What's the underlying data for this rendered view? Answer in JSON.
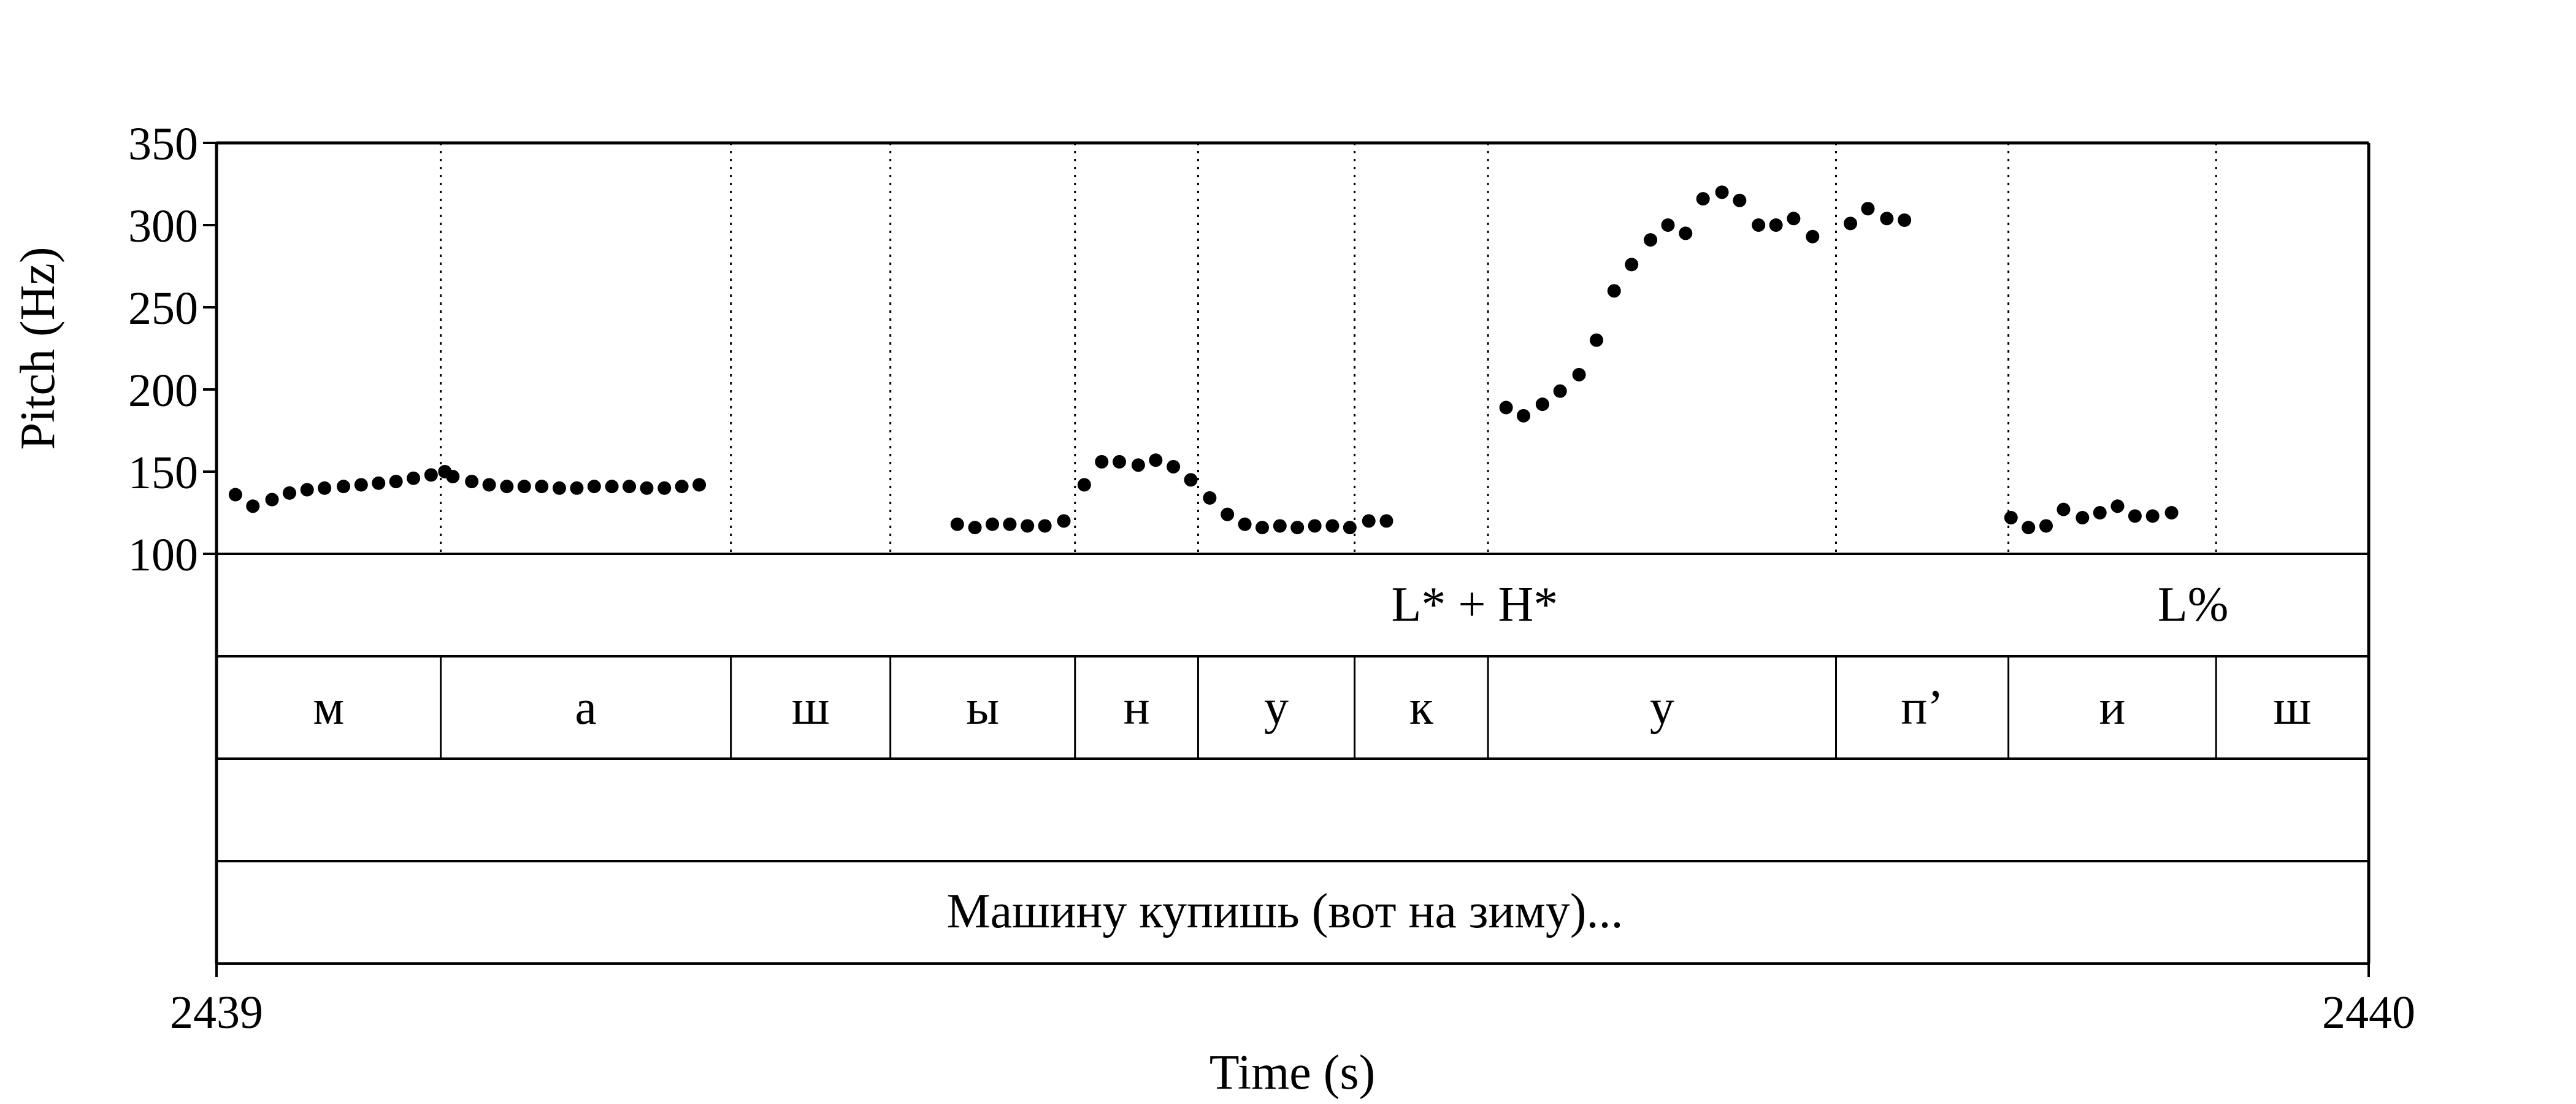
{
  "chart_data": {
    "type": "scatter",
    "title": "",
    "xlabel": "Time (s)",
    "ylabel": "Pitch (Hz)",
    "xlim": [
      2439,
      2440
    ],
    "ylim": [
      100,
      350
    ],
    "y_ticks": [
      100,
      150,
      200,
      250,
      300,
      350
    ],
    "x_tick_labels": [
      "2439",
      "2440"
    ],
    "grid": false,
    "series": [
      {
        "name": "",
        "points": [
          [
            2439.0088,
            136
          ],
          [
            2439.0169,
            129
          ],
          [
            2439.0258,
            133
          ],
          [
            2439.0339,
            137
          ],
          [
            2439.0421,
            139
          ],
          [
            2439.0502,
            140
          ],
          [
            2439.059,
            141
          ],
          [
            2439.0672,
            142
          ],
          [
            2439.0753,
            143
          ],
          [
            2439.0834,
            144
          ],
          [
            2439.0915,
            146
          ],
          [
            2439.0997,
            148
          ],
          [
            2439.1061,
            150
          ],
          [
            2439.1098,
            147
          ],
          [
            2439.1186,
            144
          ],
          [
            2439.1267,
            142
          ],
          [
            2439.1349,
            141
          ],
          [
            2439.143,
            141
          ],
          [
            2439.1511,
            141
          ],
          [
            2439.1593,
            140
          ],
          [
            2439.1674,
            140
          ],
          [
            2439.1755,
            141
          ],
          [
            2439.1837,
            141
          ],
          [
            2439.1918,
            141
          ],
          [
            2439.1999,
            140
          ],
          [
            2439.2081,
            140
          ],
          [
            2439.2162,
            141
          ],
          [
            2439.2243,
            142
          ],
          [
            2439.3442,
            118
          ],
          [
            2439.3524,
            116
          ],
          [
            2439.3605,
            118
          ],
          [
            2439.3686,
            118
          ],
          [
            2439.3768,
            117
          ],
          [
            2439.3849,
            117
          ],
          [
            2439.3937,
            120
          ],
          [
            2439.4032,
            142
          ],
          [
            2439.4113,
            156
          ],
          [
            2439.4195,
            156
          ],
          [
            2439.4283,
            154
          ],
          [
            2439.4364,
            157
          ],
          [
            2439.4446,
            153
          ],
          [
            2439.4527,
            145
          ],
          [
            2439.4615,
            134
          ],
          [
            2439.4697,
            124
          ],
          [
            2439.4778,
            118
          ],
          [
            2439.4859,
            116
          ],
          [
            2439.4941,
            117
          ],
          [
            2439.5022,
            116
          ],
          [
            2439.5103,
            117
          ],
          [
            2439.5185,
            117
          ],
          [
            2439.5266,
            116
          ],
          [
            2439.5354,
            120
          ],
          [
            2439.5436,
            120
          ],
          [
            2439.5992,
            189
          ],
          [
            2439.6073,
            184
          ],
          [
            2439.6161,
            191
          ],
          [
            2439.6243,
            199
          ],
          [
            2439.6331,
            209
          ],
          [
            2439.6412,
            230
          ],
          [
            2439.6494,
            260
          ],
          [
            2439.6575,
            276
          ],
          [
            2439.6663,
            291
          ],
          [
            2439.6744,
            300
          ],
          [
            2439.6826,
            295
          ],
          [
            2439.6907,
            316
          ],
          [
            2439.6995,
            320
          ],
          [
            2439.7077,
            315
          ],
          [
            2439.7165,
            300
          ],
          [
            2439.7246,
            300
          ],
          [
            2439.7328,
            304
          ],
          [
            2439.7416,
            293
          ],
          [
            2439.7592,
            301
          ],
          [
            2439.7673,
            310
          ],
          [
            2439.7761,
            304
          ],
          [
            2439.7843,
            303
          ],
          [
            2439.8338,
            122
          ],
          [
            2439.8419,
            116
          ],
          [
            2439.8501,
            117
          ],
          [
            2439.8582,
            127
          ],
          [
            2439.867,
            122
          ],
          [
            2439.8751,
            125
          ],
          [
            2439.8833,
            129
          ],
          [
            2439.8914,
            123
          ],
          [
            2439.8996,
            123
          ],
          [
            2439.9084,
            125
          ]
        ]
      }
    ],
    "tiers": {
      "tones": [
        {
          "label": "L* + H*",
          "time": 2439.5846
        },
        {
          "label": "L%",
          "time": 2439.9184
        }
      ],
      "segments": [
        {
          "label": "м",
          "start": 2439.0,
          "end": 2439.1042
        },
        {
          "label": "а",
          "start": 2439.1042,
          "end": 2439.239
        },
        {
          "label": "ш",
          "start": 2439.239,
          "end": 2439.3131
        },
        {
          "label": "ы",
          "start": 2439.3131,
          "end": 2439.3989
        },
        {
          "label": "н",
          "start": 2439.3989,
          "end": 2439.4561
        },
        {
          "label": "у",
          "start": 2439.4561,
          "end": 2439.5288
        },
        {
          "label": "к",
          "start": 2439.5288,
          "end": 2439.5908
        },
        {
          "label": "у",
          "start": 2439.5908,
          "end": 2439.7525
        },
        {
          "label": "п’",
          "start": 2439.7525,
          "end": 2439.8326
        },
        {
          "label": "и",
          "start": 2439.8326,
          "end": 2439.9291
        },
        {
          "label": "ш",
          "start": 2439.9291,
          "end": 2440.0
        }
      ],
      "empty_tier": "",
      "utterance": "Машину купишь (вот на зиму)..."
    }
  }
}
